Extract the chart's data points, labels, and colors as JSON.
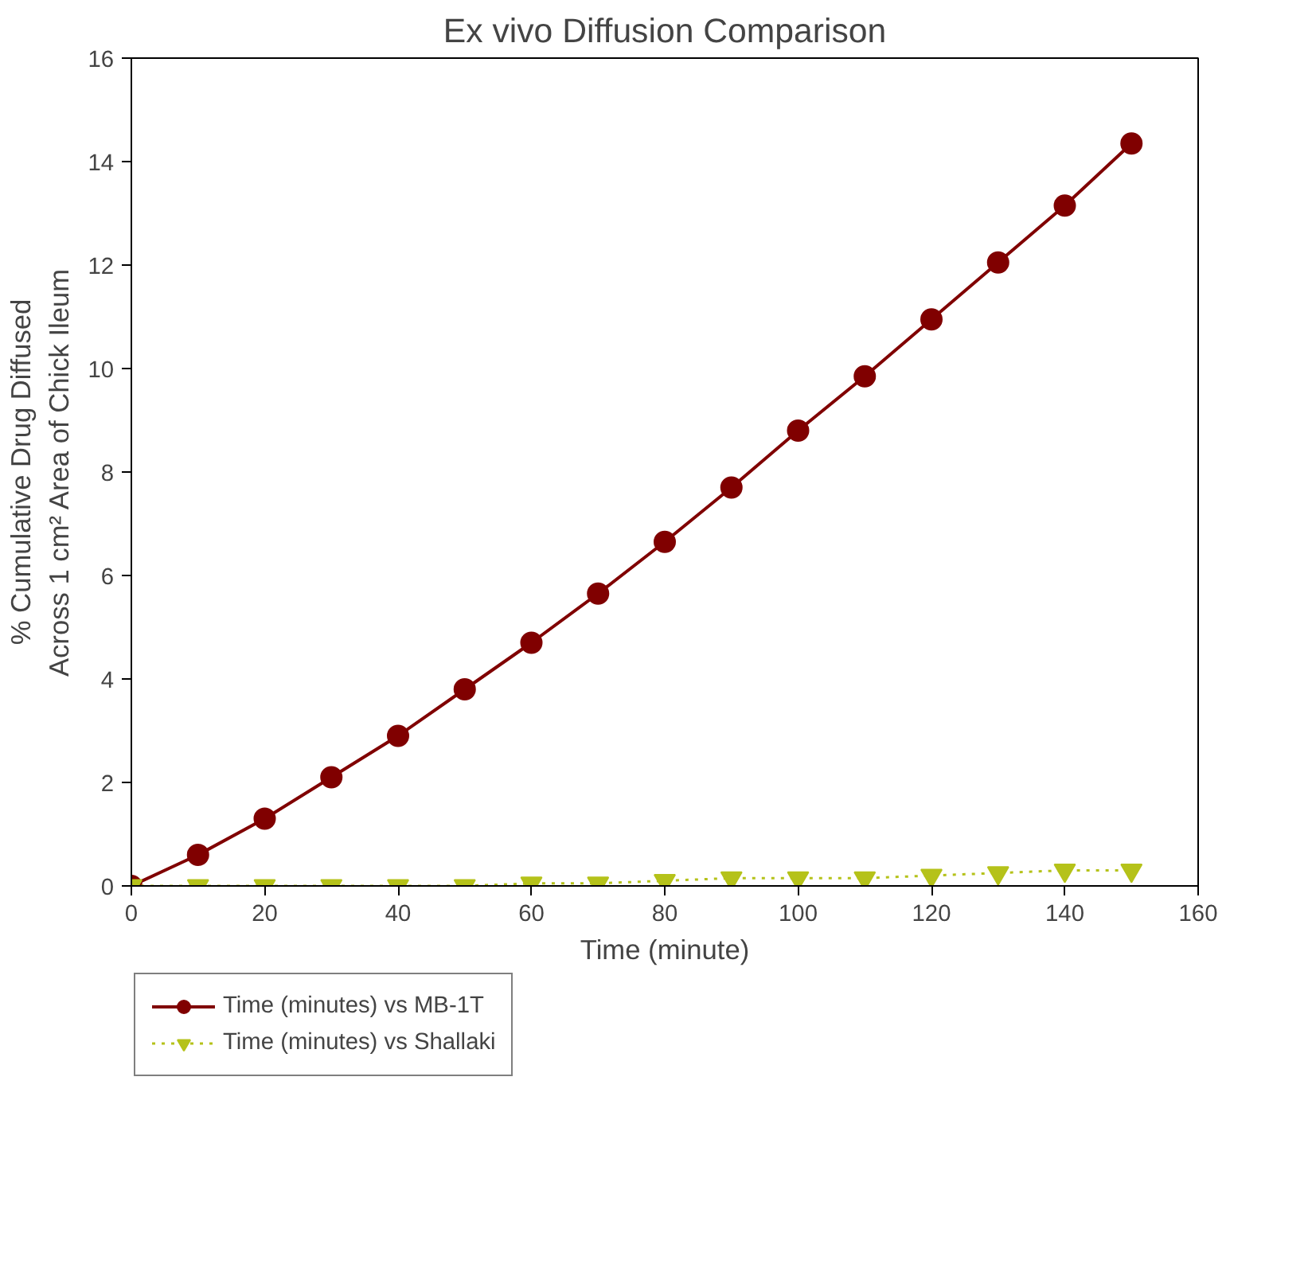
{
  "chart_data": {
    "type": "line",
    "title": "Ex vivo Diffusion Comparison",
    "xlabel": "Time (minute)",
    "ylabel": "% Cumulative Drug Diffused\nAcross 1 cm² Area of Chick Ileum",
    "x": [
      0,
      10,
      20,
      30,
      40,
      50,
      60,
      70,
      80,
      90,
      100,
      110,
      120,
      130,
      140,
      150
    ],
    "series": [
      {
        "name": "Time (minutes) vs MB-1T",
        "color": "#800000",
        "marker": "circle",
        "line_style": "solid",
        "values": [
          0,
          0.6,
          1.3,
          2.1,
          2.9,
          3.8,
          4.7,
          5.65,
          6.65,
          7.7,
          8.8,
          9.85,
          10.95,
          12.05,
          13.15,
          14.35
        ]
      },
      {
        "name": "Time (minutes) vs Shallaki",
        "color": "#b5c21a",
        "marker": "triangle",
        "line_style": "dotted",
        "values": [
          0,
          0,
          0,
          0,
          0,
          0,
          0.05,
          0.05,
          0.1,
          0.15,
          0.15,
          0.15,
          0.2,
          0.25,
          0.3,
          0.3
        ]
      }
    ],
    "xlim": [
      0,
      160
    ],
    "ylim": [
      0,
      16
    ],
    "xticks": [
      0,
      20,
      40,
      60,
      80,
      100,
      120,
      140,
      160
    ],
    "yticks": [
      0,
      2,
      4,
      6,
      8,
      10,
      12,
      14,
      16
    ],
    "grid": false,
    "legend": "bottom left"
  }
}
